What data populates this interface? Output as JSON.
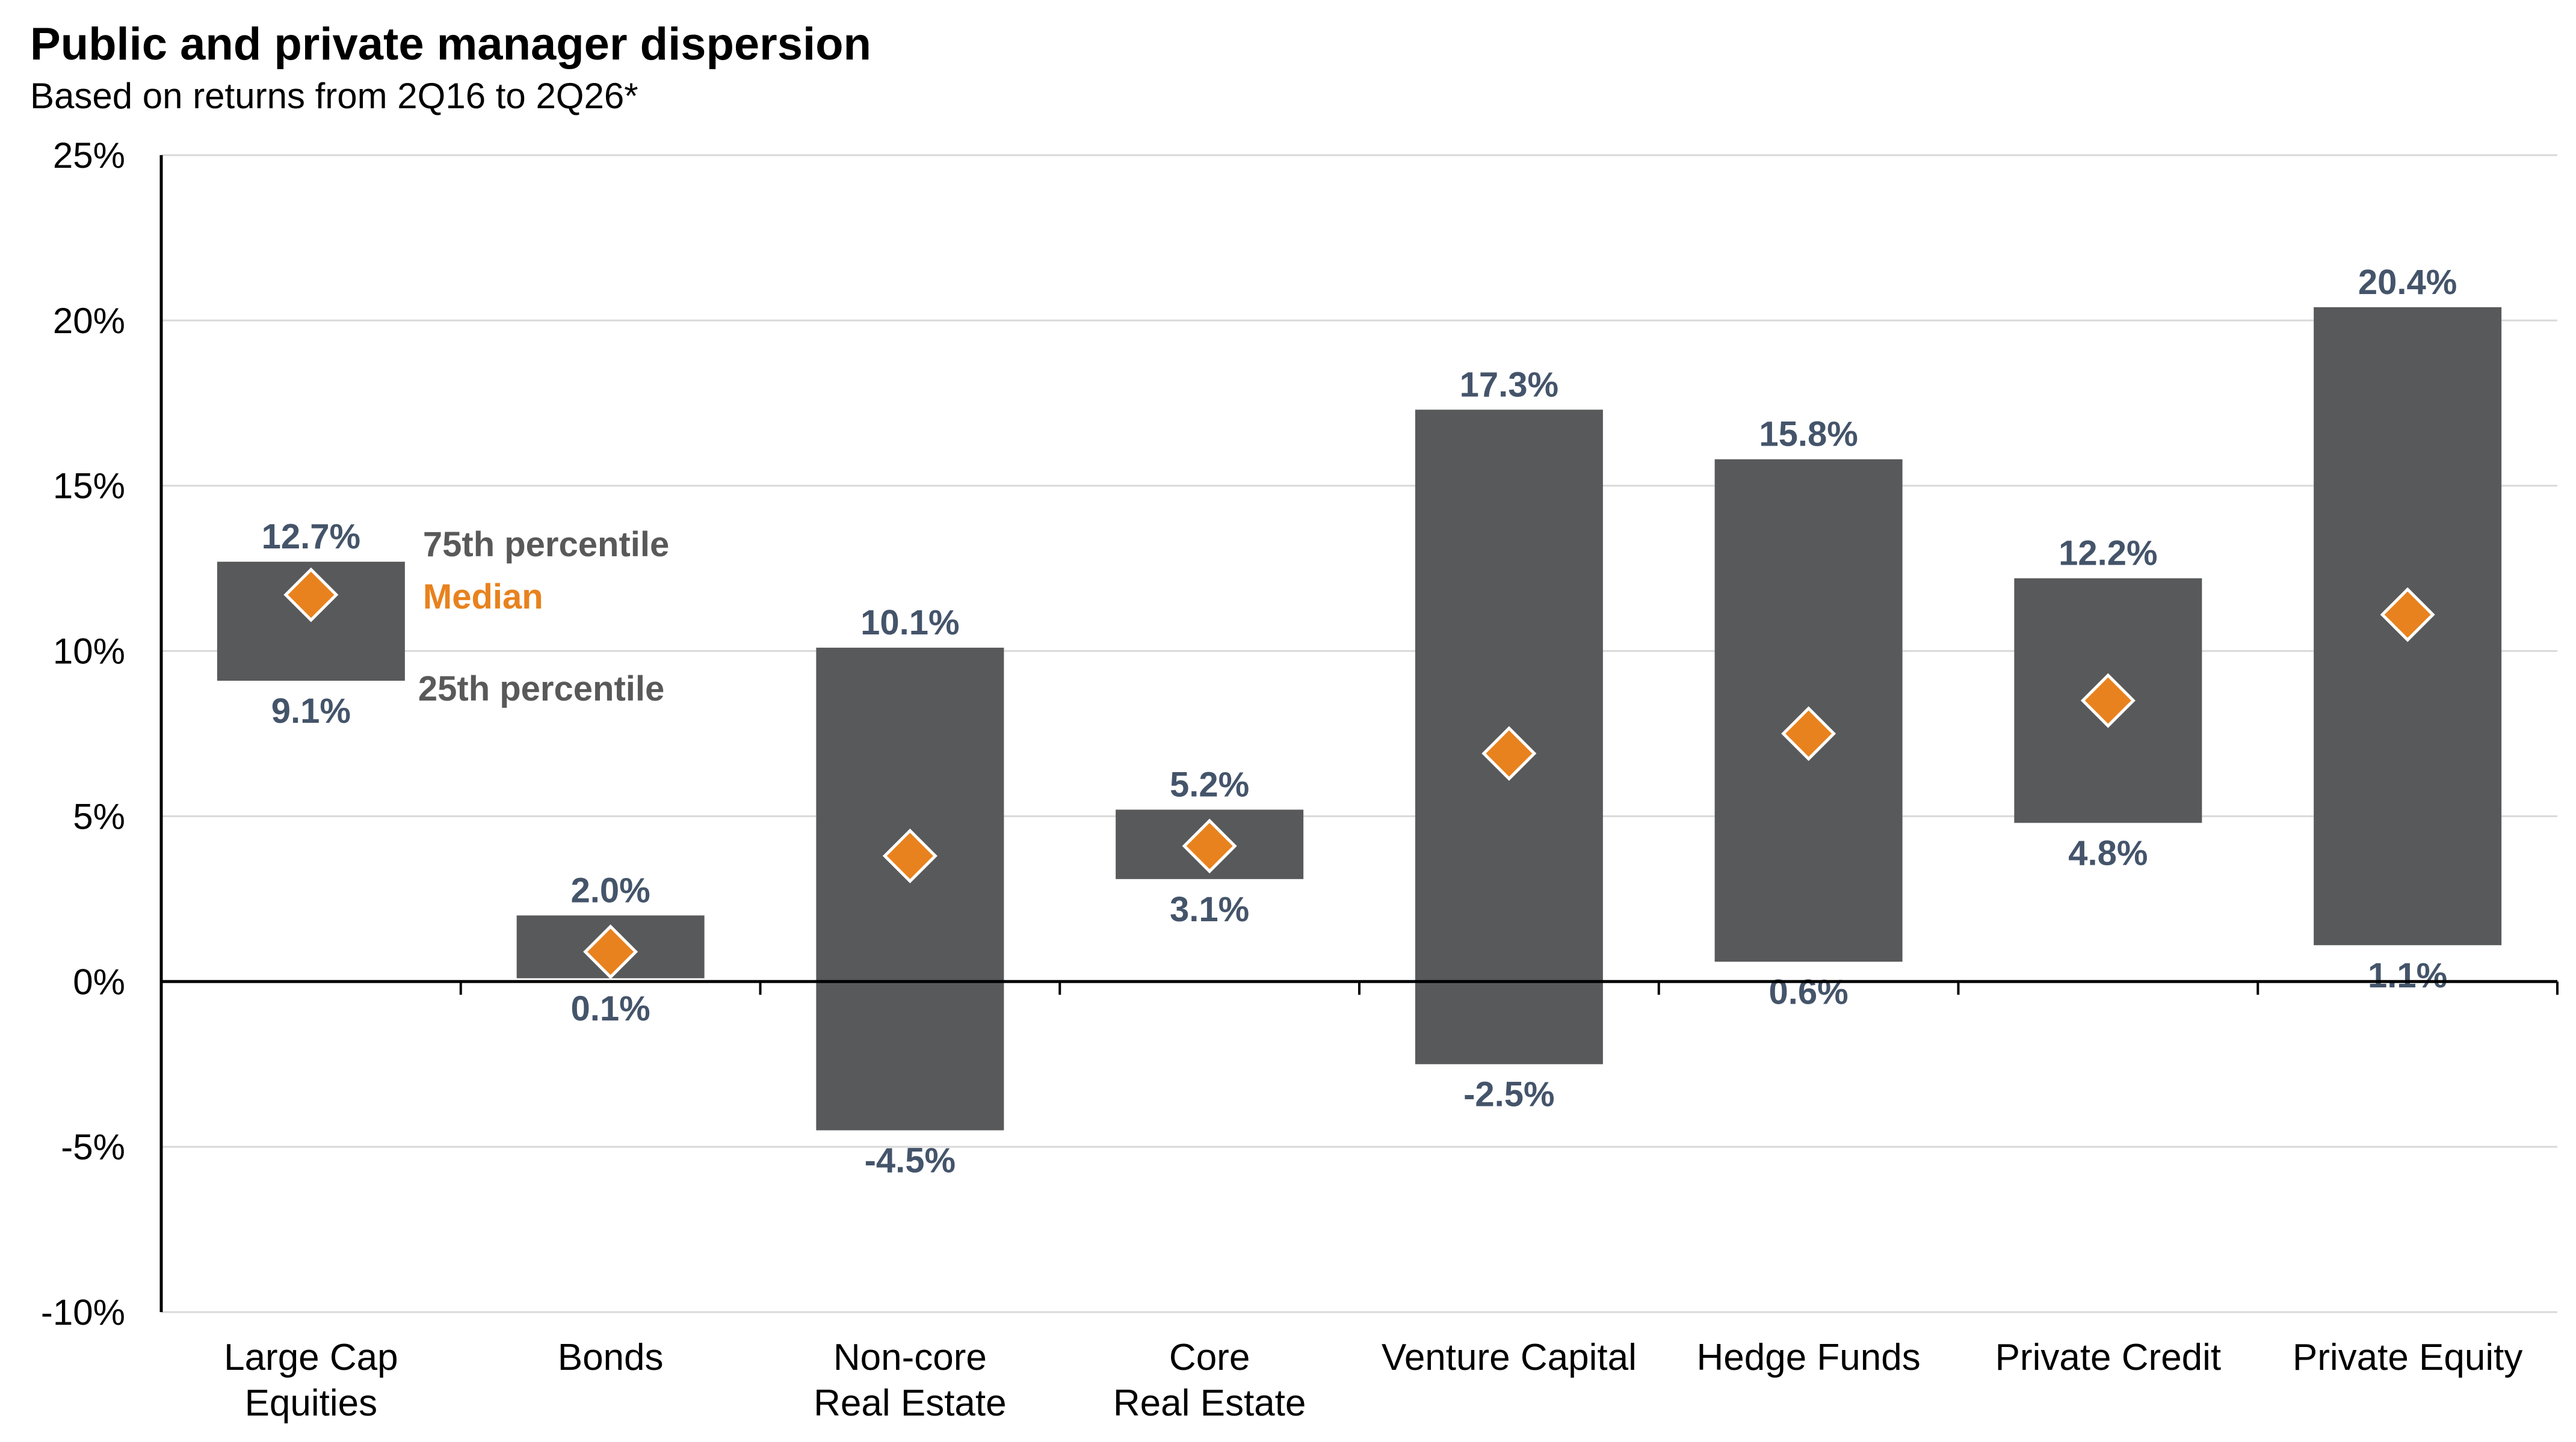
{
  "title": "Public and private manager dispersion",
  "subtitle": "Based on returns from 2Q16 to 2Q26*",
  "colors": {
    "bar": "#58595b",
    "median": "#e8821e",
    "label": "#44546a",
    "grid": "#d9d9d9",
    "axis": "#000000"
  },
  "chart_data": {
    "type": "bar",
    "subtype": "floating-range with median marker",
    "categories": [
      [
        "Large Cap",
        "Equities"
      ],
      [
        "Bonds"
      ],
      [
        "Non-core",
        "Real Estate"
      ],
      [
        "Core",
        "Real Estate"
      ],
      [
        "Venture Capital"
      ],
      [
        "Hedge Funds"
      ],
      [
        "Private Credit"
      ],
      [
        "Private Equity"
      ]
    ],
    "series": [
      {
        "name": "75th percentile",
        "values": [
          12.7,
          2.0,
          10.1,
          5.2,
          17.3,
          15.8,
          12.2,
          20.4
        ]
      },
      {
        "name": "Median",
        "values": [
          11.7,
          0.9,
          3.8,
          4.1,
          6.9,
          7.5,
          8.5,
          11.1
        ]
      },
      {
        "name": "25th percentile",
        "values": [
          9.1,
          0.1,
          -4.5,
          3.1,
          -2.5,
          0.6,
          4.8,
          1.1
        ]
      }
    ],
    "high_labels": [
      "12.7%",
      "2.0%",
      "10.1%",
      "5.2%",
      "17.3%",
      "15.8%",
      "12.2%",
      "20.4%"
    ],
    "low_labels": [
      "9.1%",
      "0.1%",
      "-4.5%",
      "3.1%",
      "-2.5%",
      "0.6%",
      "4.8%",
      "1.1%"
    ],
    "ylim": [
      -10,
      25
    ],
    "yticks": [
      25,
      20,
      15,
      10,
      5,
      0,
      -5,
      -10
    ],
    "ytick_labels": [
      "25%",
      "20%",
      "15%",
      "10%",
      "5%",
      "0%",
      "-5%",
      "-10%"
    ],
    "legend": {
      "placement": "beside first bar",
      "items": [
        "75th percentile",
        "Median",
        "25th percentile"
      ]
    },
    "grid": true
  }
}
